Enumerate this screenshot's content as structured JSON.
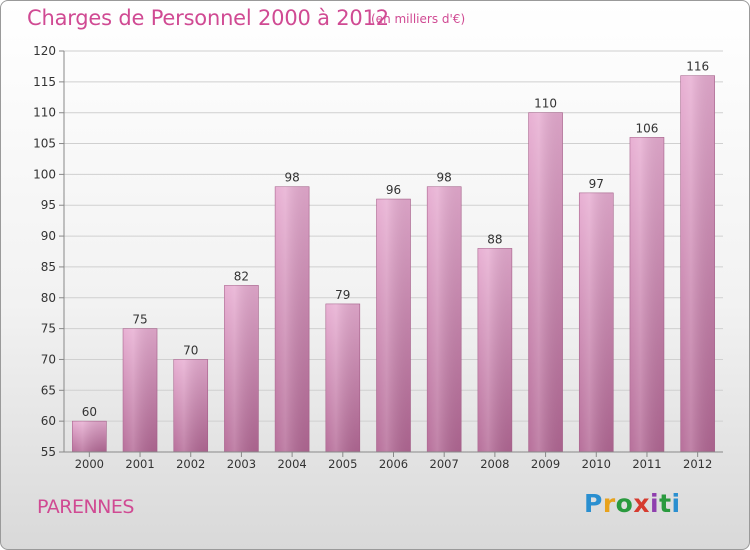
{
  "page": {
    "title": "Charges de Personnel 2000 à 2012",
    "subtitle": "(en milliers d'€)",
    "city": "PARENNES",
    "logo_text": "Proxiti",
    "colors": {
      "title": "#d04a93",
      "bar_top": "#e7acd1",
      "bar_bottom": "#b66a98",
      "axis": "#888888",
      "grid": "#d0d0d0"
    }
  },
  "chart_data": {
    "type": "bar",
    "title": "Charges de Personnel 2000 à 2012",
    "subtitle": "(en milliers d'€)",
    "categories": [
      "2000",
      "2001",
      "2002",
      "2003",
      "2004",
      "2005",
      "2006",
      "2007",
      "2008",
      "2009",
      "2010",
      "2011",
      "2012"
    ],
    "values": [
      60,
      75,
      70,
      82,
      98,
      79,
      96,
      98,
      88,
      110,
      97,
      106,
      116
    ],
    "ylim": [
      55,
      120
    ],
    "yticks": [
      55,
      60,
      65,
      70,
      75,
      80,
      85,
      90,
      95,
      100,
      105,
      110,
      115,
      120
    ],
    "grid": true,
    "legend": "none"
  }
}
